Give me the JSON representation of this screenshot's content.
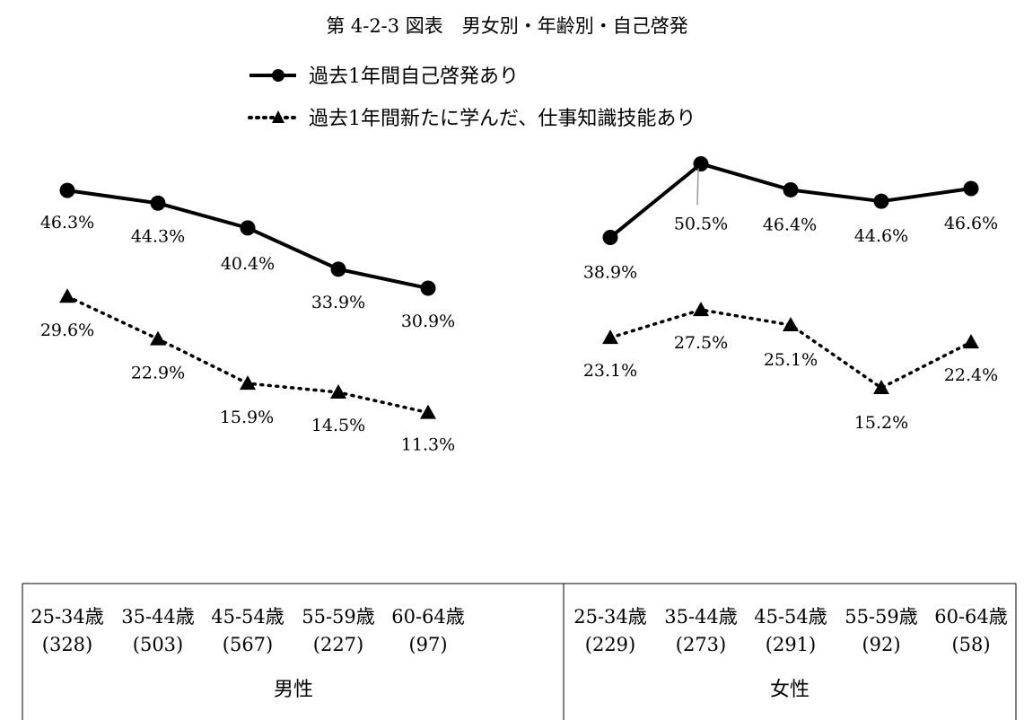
{
  "chart_data": {
    "type": "line",
    "title": "第 4-2-3 図表　男女別・年齢別・自己啓発",
    "legend": [
      {
        "name": "過去1年間自己啓発あり",
        "style": "solid",
        "marker": "circle"
      },
      {
        "name": "過去1年間新たに学んだ、仕事知識技能あり",
        "style": "dotted",
        "marker": "triangle"
      }
    ],
    "groups": [
      {
        "name": "男性",
        "categories": [
          "25-34歳",
          "35-44歳",
          "45-54歳",
          "55-59歳",
          "60-64歳"
        ],
        "counts": [
          "(328)",
          "(503)",
          "(567)",
          "(227)",
          "(97)"
        ],
        "series": [
          {
            "name": "過去1年間自己啓発あり",
            "values": [
              46.3,
              44.3,
              40.4,
              33.9,
              30.9
            ],
            "labels": [
              "46.3%",
              "44.3%",
              "40.4%",
              "33.9%",
              "30.9%"
            ]
          },
          {
            "name": "過去1年間新たに学んだ、仕事知識技能あり",
            "values": [
              29.6,
              22.9,
              15.9,
              14.5,
              11.3
            ],
            "labels": [
              "29.6%",
              "22.9%",
              "15.9%",
              "14.5%",
              "11.3%"
            ]
          }
        ]
      },
      {
        "name": "女性",
        "categories": [
          "25-34歳",
          "35-44歳",
          "45-54歳",
          "55-59歳",
          "60-64歳"
        ],
        "counts": [
          "(229)",
          "(273)",
          "(291)",
          "(92)",
          "(58)"
        ],
        "series": [
          {
            "name": "過去1年間自己啓発あり",
            "values": [
              38.9,
              50.5,
              46.4,
              44.6,
              46.6
            ],
            "labels": [
              "38.9%",
              "50.5%",
              "46.4%",
              "44.6%",
              "46.6%"
            ]
          },
          {
            "name": "過去1年間新たに学んだ、仕事知識技能あり",
            "values": [
              23.1,
              27.5,
              25.1,
              15.2,
              22.4
            ],
            "labels": [
              "23.1%",
              "27.5%",
              "25.1%",
              "15.2%",
              "22.4%"
            ]
          }
        ]
      }
    ],
    "ylim": [
      5,
      55
    ],
    "grid": false
  }
}
